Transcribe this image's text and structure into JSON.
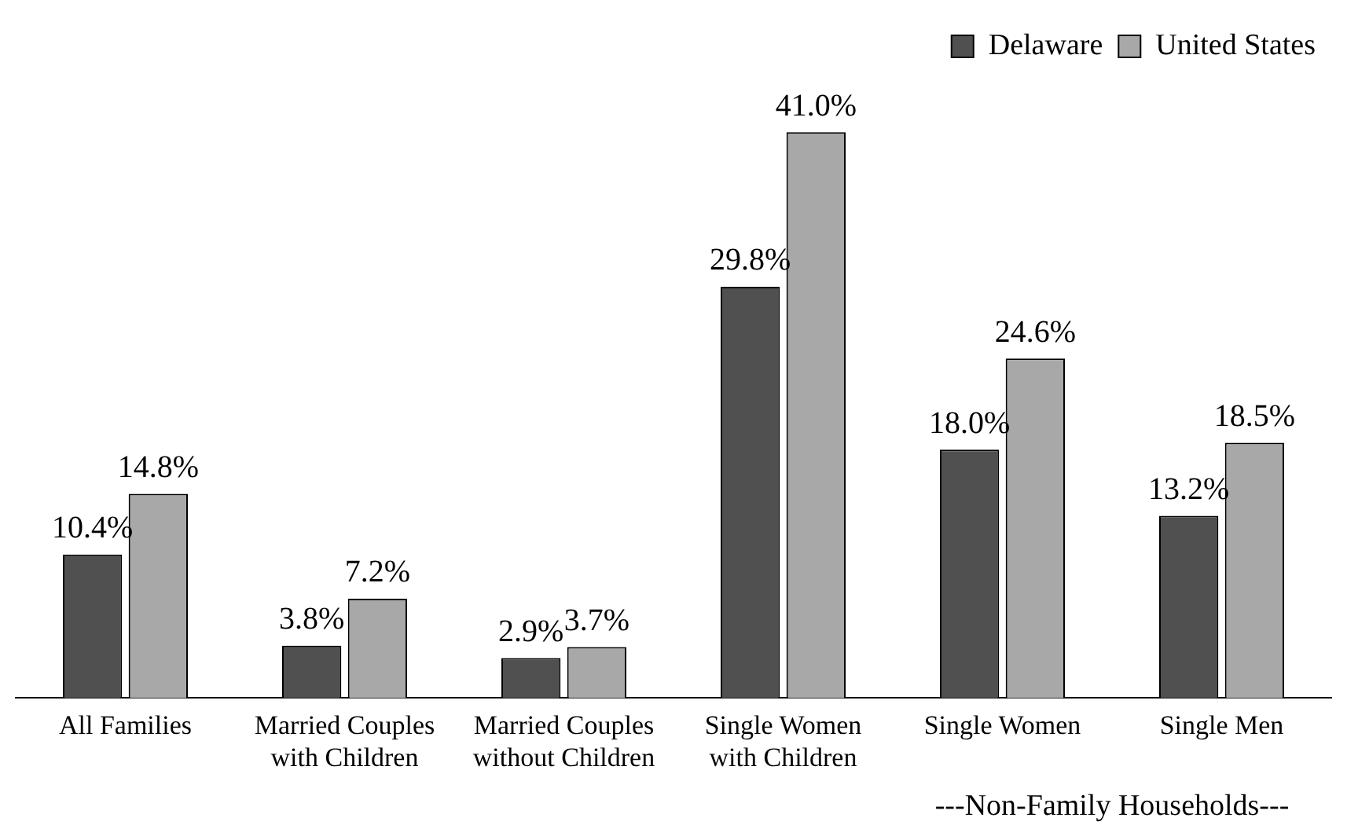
{
  "chart_data": {
    "type": "bar",
    "categories": [
      "All Families",
      "Married Couples\nwith Children",
      "Married Couples\nwithout Children",
      "Single Women\nwith Children",
      "Single Women",
      "Single Men"
    ],
    "series": [
      {
        "name": "Delaware",
        "color": "#505050",
        "values": [
          10.4,
          3.8,
          2.9,
          29.8,
          18.0,
          13.2
        ],
        "value_labels": [
          "10.4%",
          "3.8%",
          "2.9%",
          "29.8%",
          "18.0%",
          "13.2%"
        ]
      },
      {
        "name": "United States",
        "color": "#a8a8a8",
        "values": [
          14.8,
          7.2,
          3.7,
          41.0,
          24.6,
          18.5
        ],
        "value_labels": [
          "14.8%",
          "7.2%",
          "3.7%",
          "41.0%",
          "24.6%",
          "18.5%"
        ]
      }
    ],
    "annotations": [
      "---Non-Family Households---"
    ],
    "legend": "top right",
    "grid": false
  }
}
